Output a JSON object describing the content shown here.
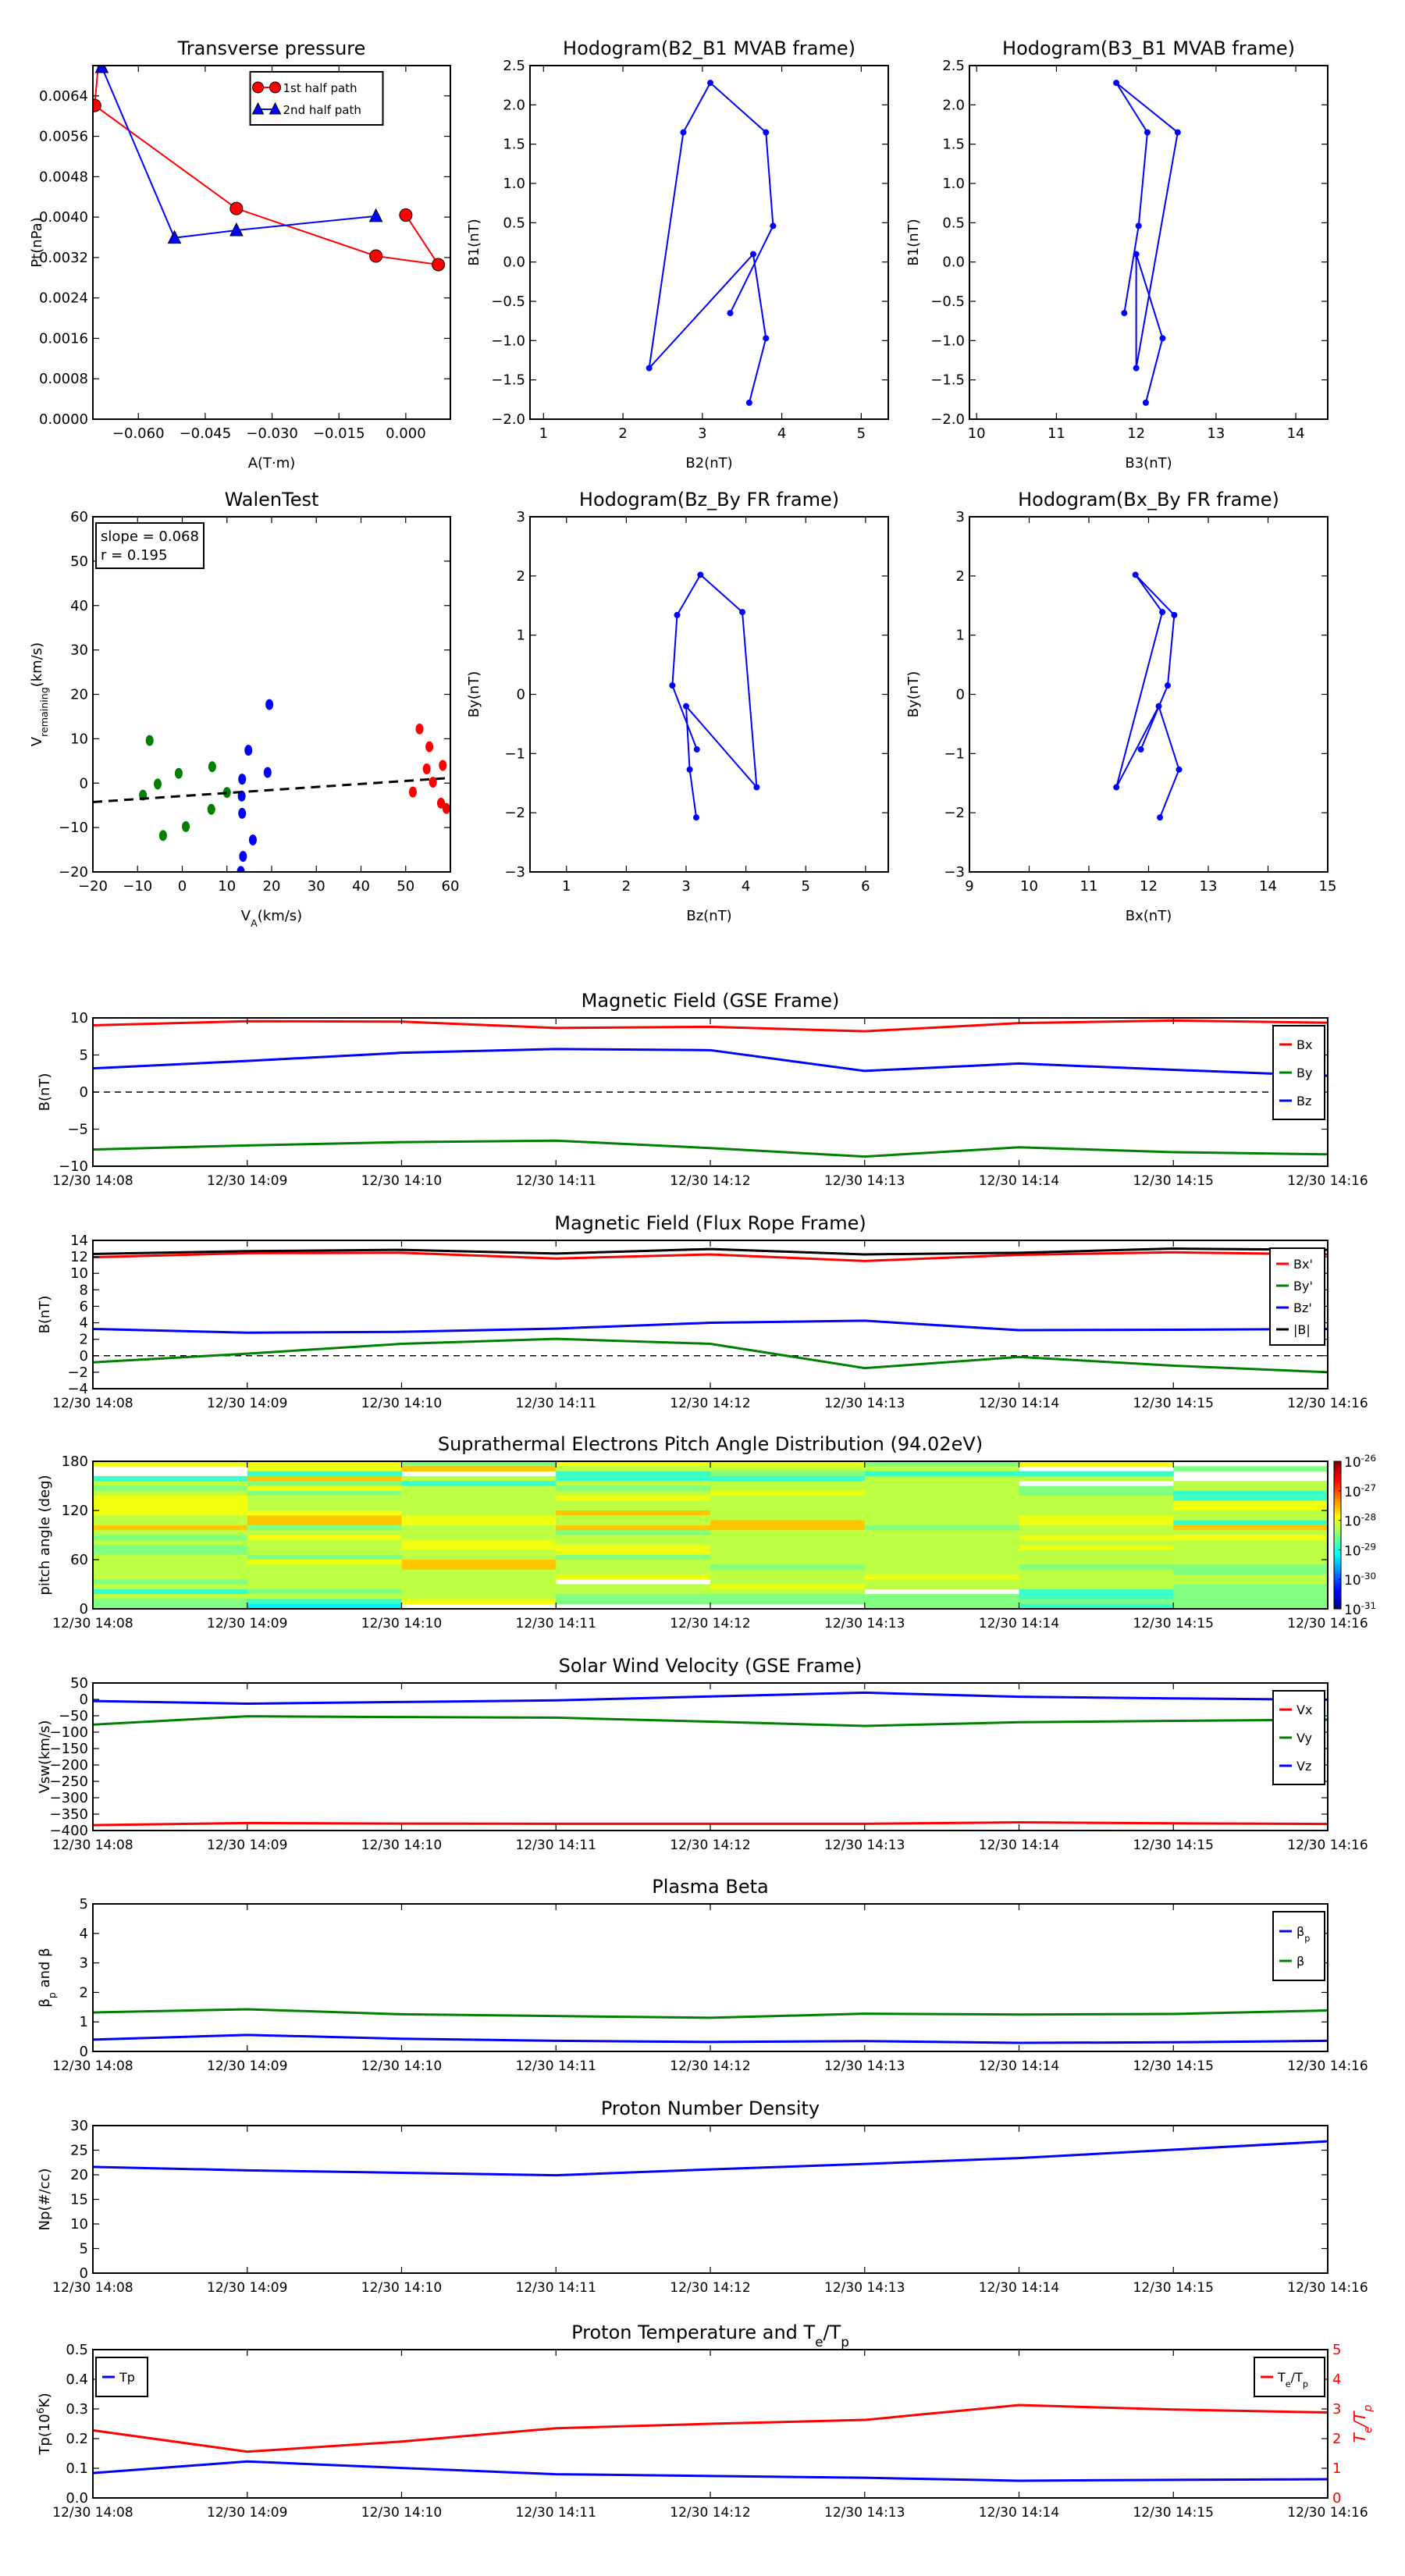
{
  "time_ticks": [
    "12/30 14:08",
    "12/30 14:09",
    "12/30 14:10",
    "12/30 14:11",
    "12/30 14:12",
    "12/30 14:13",
    "12/30 14:14",
    "12/30 14:15",
    "12/30 14:16"
  ],
  "chart_data": [
    {
      "type": "line",
      "title": "Transverse pressure",
      "xlabel": "A(T·m)",
      "ylabel": "Pt(nPa)",
      "xlim": [
        -0.0702,
        0.01
      ],
      "ylim": [
        0,
        0.007
      ],
      "xticks": [
        -0.06,
        -0.045,
        -0.03,
        -0.015,
        0.0
      ],
      "xticklabels": [
        "−0.060",
        "−0.045",
        "−0.030",
        "−0.015",
        "0.000"
      ],
      "yticks": [
        0,
        0.0008,
        0.0016,
        0.0024,
        0.0032,
        0.004,
        0.0048,
        0.0056,
        0.0064
      ],
      "yticklabels": [
        "0.0000",
        "0.0008",
        "0.0016",
        "0.0024",
        "0.0032",
        "0.0040",
        "0.0048",
        "0.0056",
        "0.0064"
      ],
      "legend": "upper-center",
      "series": [
        {
          "name": "1st half path",
          "color": "#ff0000",
          "marker": "circle",
          "x": [
            -0.0685,
            -0.0698,
            -0.038,
            -0.0067,
            0.0073,
            0.0
          ],
          "y": [
            0.0075,
            0.00621,
            0.00417,
            0.00323,
            0.00306,
            0.00404
          ]
        },
        {
          "name": "2nd half path",
          "color": "#0000ff",
          "marker": "triangle",
          "x": [
            -0.0682,
            -0.0519,
            -0.038,
            -0.0067
          ],
          "y": [
            0.00697,
            0.00359,
            0.00374,
            0.00402
          ]
        }
      ]
    },
    {
      "type": "line",
      "title": "Hodogram(B2_B1 MVAB frame)",
      "xlabel": "B2(nT)",
      "ylabel": "B1(nT)",
      "xlim": [
        0.83,
        5.34
      ],
      "ylim": [
        -2.0,
        2.5
      ],
      "xticks": [
        1,
        2,
        3,
        4,
        5
      ],
      "xticklabels": [
        "1",
        "2",
        "3",
        "4",
        "5"
      ],
      "yticks": [
        -2,
        -1.5,
        -1,
        -0.5,
        0,
        0.5,
        1,
        1.5,
        2,
        2.5
      ],
      "yticklabels": [
        "−2.0",
        "−1.5",
        "−1.0",
        "−0.5",
        "0.0",
        "0.5",
        "1.0",
        "1.5",
        "2.0",
        "2.5"
      ],
      "series": [
        {
          "name": "hodogram",
          "color": "#0000ff",
          "marker": "dot",
          "x": [
            3.35,
            3.89,
            3.8,
            3.1,
            2.76,
            2.33,
            3.64,
            3.8,
            3.59
          ],
          "y": [
            -0.65,
            0.46,
            1.65,
            2.28,
            1.65,
            -1.35,
            0.1,
            -0.97,
            -1.79
          ]
        }
      ]
    },
    {
      "type": "line",
      "title": "Hodogram(B3_B1 MVAB frame)",
      "xlabel": "B3(nT)",
      "ylabel": "B1(nT)",
      "xlim": [
        9.91,
        14.4
      ],
      "ylim": [
        -2.0,
        2.5
      ],
      "xticks": [
        10,
        11,
        12,
        13,
        14
      ],
      "xticklabels": [
        "10",
        "11",
        "12",
        "13",
        "14"
      ],
      "yticks": [
        -2,
        -1.5,
        -1,
        -0.5,
        0,
        0.5,
        1,
        1.5,
        2,
        2.5
      ],
      "yticklabels": [
        "−2.0",
        "−1.5",
        "−1.0",
        "−0.5",
        "0.0",
        "0.5",
        "1.0",
        "1.5",
        "2.0",
        "2.5"
      ],
      "series": [
        {
          "name": "hodogram",
          "color": "#0000ff",
          "marker": "dot",
          "x": [
            11.85,
            12.03,
            12.14,
            11.75,
            12.52,
            12.0,
            12.0,
            12.33,
            12.12
          ],
          "y": [
            -0.65,
            0.46,
            1.65,
            2.28,
            1.65,
            -1.35,
            0.1,
            -0.97,
            -1.79
          ]
        }
      ]
    },
    {
      "type": "scatter",
      "title": "WalenTest",
      "xlabel": "V_{A}(km/s)",
      "ylabel": "V_{remaining}(km/s)",
      "xlim": [
        -20,
        60
      ],
      "ylim": [
        -20,
        60
      ],
      "xticks": [
        -20,
        -10,
        0,
        10,
        20,
        30,
        40,
        50,
        60
      ],
      "xticklabels": [
        "−20",
        "−10",
        "0",
        "10",
        "20",
        "30",
        "40",
        "50",
        "60"
      ],
      "yticks": [
        -20,
        -10,
        0,
        10,
        20,
        30,
        40,
        50,
        60
      ],
      "yticklabels": [
        "−20",
        "−10",
        "0",
        "10",
        "20",
        "30",
        "40",
        "50",
        "60"
      ],
      "annotation": [
        "slope = 0.068",
        "r = 0.195"
      ],
      "fit": {
        "slope": 0.068,
        "intercept": -2.9,
        "style": "dashed",
        "color": "#000000"
      },
      "series": [
        {
          "name": "green",
          "color": "#008000",
          "x": [
            -7.3,
            -0.8,
            -5.5,
            -8.8,
            6.7,
            10.0,
            6.5,
            0.8,
            -4.3
          ],
          "y": [
            9.6,
            2.2,
            -0.2,
            -2.7,
            3.7,
            -2.1,
            -5.9,
            -9.8,
            -11.8
          ]
        },
        {
          "name": "blue",
          "color": "#0000ff",
          "x": [
            19.5,
            14.8,
            19.1,
            13.4,
            13.3,
            13.4,
            15.8,
            13.6,
            13.1
          ],
          "y": [
            17.7,
            7.4,
            2.4,
            0.9,
            -2.9,
            -6.8,
            -12.8,
            -16.5,
            -19.9
          ]
        },
        {
          "name": "red",
          "color": "#ff0000",
          "x": [
            53.1,
            55.3,
            54.7,
            58.3,
            56.1,
            51.6,
            57.9,
            59.1
          ],
          "y": [
            12.2,
            8.2,
            3.2,
            4.0,
            0.2,
            -2.0,
            -4.5,
            -5.7
          ]
        }
      ]
    },
    {
      "type": "line",
      "title": "Hodogram(Bz_By FR frame)",
      "xlabel": "Bz(nT)",
      "ylabel": "By(nT)",
      "xlim": [
        0.39,
        6.38
      ],
      "ylim": [
        -3,
        3
      ],
      "xticks": [
        1,
        2,
        3,
        4,
        5,
        6
      ],
      "xticklabels": [
        "1",
        "2",
        "3",
        "4",
        "5",
        "6"
      ],
      "yticks": [
        -3,
        -2,
        -1,
        0,
        1,
        2,
        3
      ],
      "yticklabels": [
        "−3",
        "−2",
        "−1",
        "0",
        "1",
        "2",
        "3"
      ],
      "series": [
        {
          "name": "hodogram",
          "color": "#0000ff",
          "marker": "dot",
          "x": [
            3.18,
            2.77,
            2.85,
            3.24,
            3.94,
            4.18,
            3.0,
            3.06,
            3.17
          ],
          "y": [
            -0.93,
            0.15,
            1.34,
            2.02,
            1.39,
            -1.57,
            -0.2,
            -1.27,
            -2.08
          ]
        }
      ]
    },
    {
      "type": "line",
      "title": "Hodogram(Bx_By FR frame)",
      "xlabel": "Bx(nT)",
      "ylabel": "By(nT)",
      "xlim": [
        9,
        15
      ],
      "ylim": [
        -3,
        3
      ],
      "xticks": [
        9,
        10,
        11,
        12,
        13,
        14,
        15
      ],
      "xticklabels": [
        "9",
        "10",
        "11",
        "12",
        "13",
        "14",
        "15"
      ],
      "yticks": [
        -3,
        -2,
        -1,
        0,
        1,
        2,
        3
      ],
      "yticklabels": [
        "−3",
        "−2",
        "−1",
        "0",
        "1",
        "2",
        "3"
      ],
      "series": [
        {
          "name": "hodogram",
          "color": "#0000ff",
          "marker": "dot",
          "x": [
            11.87,
            12.32,
            12.43,
            11.78,
            12.23,
            11.46,
            12.17,
            12.51,
            12.19
          ],
          "y": [
            -0.93,
            0.15,
            1.34,
            2.02,
            1.39,
            -1.57,
            -0.2,
            -1.27,
            -2.08
          ]
        }
      ]
    },
    {
      "type": "line",
      "time_series": true,
      "title": "Magnetic Field (GSE Frame)",
      "ylabel": "B(nT)",
      "ylim": [
        -10,
        10
      ],
      "yticks": [
        -10,
        -5,
        0,
        5,
        10
      ],
      "yticklabels": [
        "−10",
        "−5",
        "0",
        "5",
        "10"
      ],
      "zero_line": true,
      "legend": "upper-right",
      "series": [
        {
          "name": "Bx",
          "color": "#ff0000",
          "y": [
            9.0,
            9.55,
            9.5,
            8.65,
            8.8,
            8.2,
            9.3,
            9.65,
            9.35
          ]
        },
        {
          "name": "By",
          "color": "#008000",
          "y": [
            -7.75,
            -7.2,
            -6.75,
            -6.55,
            -7.55,
            -8.7,
            -7.45,
            -8.1,
            -8.4
          ]
        },
        {
          "name": "Bz",
          "color": "#0000ff",
          "y": [
            3.2,
            4.2,
            5.3,
            5.8,
            5.65,
            2.85,
            3.85,
            3.0,
            2.2
          ]
        }
      ]
    },
    {
      "type": "line",
      "time_series": true,
      "title": "Magnetic Field (Flux Rope Frame)",
      "ylabel": "B(nT)",
      "ylim": [
        -4,
        14
      ],
      "yticks": [
        -4,
        -2,
        0,
        2,
        4,
        6,
        8,
        10,
        12,
        14
      ],
      "yticklabels": [
        "−4",
        "−2",
        "0",
        "2",
        "4",
        "6",
        "8",
        "10",
        "12",
        "14"
      ],
      "zero_line": true,
      "legend": "upper-right",
      "series": [
        {
          "name": "Bx'",
          "color": "#ff0000",
          "y": [
            11.95,
            12.45,
            12.5,
            11.8,
            12.3,
            11.5,
            12.25,
            12.55,
            12.3
          ]
        },
        {
          "name": "By'",
          "color": "#008000",
          "y": [
            -0.8,
            0.25,
            1.45,
            2.05,
            1.45,
            -1.5,
            -0.15,
            -1.2,
            -2.0
          ]
        },
        {
          "name": "Bz'",
          "color": "#0000ff",
          "y": [
            3.25,
            2.8,
            2.9,
            3.3,
            4.0,
            4.25,
            3.1,
            3.15,
            3.25
          ]
        },
        {
          "name": "|B|",
          "color": "#000000",
          "y": [
            12.35,
            12.7,
            12.85,
            12.4,
            12.95,
            12.3,
            12.5,
            13.0,
            12.85
          ]
        }
      ]
    },
    {
      "type": "heatmap",
      "time_series": true,
      "title": "Suprathermal Electrons Pitch Angle Distribution (94.02eV)",
      "ylabel": "pitch angle (deg)",
      "ylim": [
        0,
        180
      ],
      "yticks": [
        0,
        60,
        120,
        180
      ],
      "yticklabels": [
        "0",
        "60",
        "120",
        "180"
      ],
      "bin_width_deg": 6,
      "colorbar": {
        "scale": "log",
        "range_log10": [
          -31,
          -26
        ],
        "colormap": "jet",
        "ticklabels": [
          "10^{-31}",
          "10^{-30}",
          "10^{-29}",
          "10^{-28}",
          "10^{-27}",
          "10^{-26}"
        ]
      },
      "level_log10": {
        "C": -29.2,
        "T": -28.85,
        "G": -28.5,
        "L": -28.2,
        "Y": -27.95,
        "O": -27.6,
        "W": null
      },
      "columns_top_to_bottom": [
        "YWWTLGLYYYYLLOLGLGGLLLLLGLTLGG",
        "YYTOGYGLLLYOOGLYLLLGYLLLLLGLTC",
        "GOWLTLLLLLLYYLLLYYLLOOLLLLLLYW",
        "YLTTLGLYLLOLLOGLLYYGLLLYWLLGGW",
        "YLGTLLYLLLLLOOLLLLLLLGLLLYLGGW",
        "GLTLLLLLLLLLLGLLLLLLLLLYLLWGGG",
        "YWTLWGGLLLLYYLLYLYLLLGLLLLTTGT",
        "WGWWLLTTYYLLTOLYLLLLLGGLLGGGGG"
      ]
    },
    {
      "type": "line",
      "time_series": true,
      "title": "Solar Wind Velocity (GSE Frame)",
      "ylabel": "Vsw(km/s)",
      "ylim": [
        -400,
        50
      ],
      "yticks": [
        -400,
        -350,
        -300,
        -250,
        -200,
        -150,
        -100,
        -50,
        0,
        50
      ],
      "yticklabels": [
        "−400",
        "−350",
        "−300",
        "−250",
        "−200",
        "−150",
        "−100",
        "−50",
        "0",
        "50"
      ],
      "legend": "upper-right",
      "series": [
        {
          "name": "Vx",
          "color": "#ff0000",
          "y": [
            -383.6,
            -377,
            -379,
            -379.5,
            -379.5,
            -379.5,
            -375,
            -378,
            -380
          ]
        },
        {
          "name": "Vy",
          "color": "#008000",
          "y": [
            -77,
            -51.6,
            -54,
            -55.7,
            -68,
            -81,
            -69.7,
            -65.6,
            -62
          ]
        },
        {
          "name": "Vz",
          "color": "#0000ff",
          "y": [
            -5,
            -13,
            -8,
            -3,
            9,
            20.5,
            8,
            3,
            -1
          ]
        }
      ]
    },
    {
      "type": "line",
      "time_series": true,
      "title": "Plasma Beta",
      "ylabel": "β_{p} and β",
      "ylim": [
        0,
        5
      ],
      "yticks": [
        0,
        1,
        2,
        3,
        4,
        5
      ],
      "yticklabels": [
        "0",
        "1",
        "2",
        "3",
        "4",
        "5"
      ],
      "legend": "upper-right",
      "series": [
        {
          "name": "β_{p}",
          "color": "#0000ff",
          "y": [
            0.4,
            0.56,
            0.43,
            0.36,
            0.32,
            0.35,
            0.29,
            0.31,
            0.36
          ]
        },
        {
          "name": "β",
          "color": "#008000",
          "y": [
            1.32,
            1.43,
            1.26,
            1.2,
            1.14,
            1.28,
            1.25,
            1.27,
            1.39
          ]
        }
      ]
    },
    {
      "type": "line",
      "time_series": true,
      "title": "Proton Number Density",
      "ylabel": "Np(#/cc)",
      "ylim": [
        0,
        30
      ],
      "yticks": [
        0,
        5,
        10,
        15,
        20,
        25,
        30
      ],
      "yticklabels": [
        "0",
        "5",
        "10",
        "15",
        "20",
        "25",
        "30"
      ],
      "series": [
        {
          "name": "Np",
          "color": "#0000ff",
          "y": [
            21.6,
            20.9,
            20.4,
            19.9,
            21.1,
            22.2,
            23.4,
            25.1,
            26.8
          ]
        }
      ]
    },
    {
      "type": "line",
      "time_series": true,
      "title": "Proton Temperature and T_{e}/T_{p}",
      "ylabel": "Tp(10^{6}K)",
      "ylim": [
        0,
        0.5
      ],
      "yticks": [
        0,
        0.1,
        0.2,
        0.3,
        0.4,
        0.5
      ],
      "yticklabels": [
        "0.0",
        "0.1",
        "0.2",
        "0.3",
        "0.4",
        "0.5"
      ],
      "legend": "upper-left",
      "series": [
        {
          "name": "Tp",
          "color": "#0000ff",
          "y": [
            0.084,
            0.123,
            0.101,
            0.08,
            0.074,
            0.068,
            0.058,
            0.061,
            0.063
          ]
        }
      ],
      "right_axis": {
        "ylabel": "T_{e}/T_{p}",
        "color": "#ff0000",
        "ylim": [
          0,
          5
        ],
        "yticks": [
          0,
          1,
          2,
          3,
          4,
          5
        ],
        "yticklabels": [
          "0",
          "1",
          "2",
          "3",
          "4",
          "5"
        ],
        "legend": "upper-right",
        "series": [
          {
            "name": "T_{e}/T_{p}",
            "color": "#ff0000",
            "y": [
              2.28,
              1.56,
              1.9,
              2.35,
              2.5,
              2.63,
              3.13,
              2.98,
              2.88
            ]
          }
        ]
      }
    }
  ]
}
